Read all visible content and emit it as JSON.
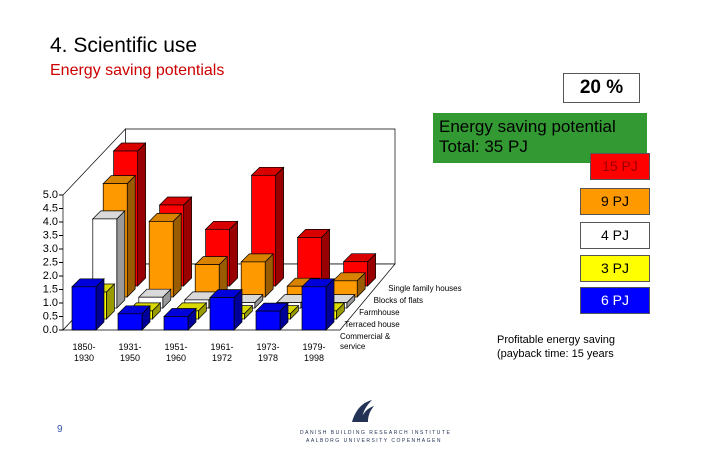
{
  "slide": {
    "title": "4. Scientific use",
    "subtitle": "Energy saving potentials",
    "percent": "20 %",
    "total": "Energy saving potential\nTotal: 35 PJ",
    "potentials": [
      "15 PJ",
      "9 PJ",
      "4 PJ",
      "3 PJ",
      "6 PJ"
    ],
    "note": "Profitable energy saving\n(payback time: 15 years",
    "page": "9",
    "institute": "DANISH BUILDING RESEARCH INSTITUTE",
    "university": "AALBORG UNIVERSITY COPENHAGEN"
  },
  "chart_data": {
    "type": "bar3d",
    "categories": [
      "1850-\n1930",
      "1931-\n1950",
      "1951-\n1960",
      "1961-\n1972",
      "1973-\n1978",
      "1979-\n1998"
    ],
    "series": [
      {
        "name": "Single family houses",
        "color": "#ff0000",
        "values": [
          5.0,
          3.0,
          2.1,
          4.1,
          1.8,
          0.9
        ]
      },
      {
        "name": "Blocks of flats",
        "color": "#ff9900",
        "values": [
          4.2,
          2.8,
          1.2,
          1.3,
          0.4,
          0.6
        ]
      },
      {
        "name": "Farmhouse",
        "color": "#ffffff",
        "values": [
          3.3,
          0.4,
          0.3,
          0.2,
          0.2,
          0.2
        ]
      },
      {
        "name": "Terraced house",
        "color": "#ffff00",
        "values": [
          1.0,
          0.3,
          0.3,
          0.2,
          0.2,
          0.3
        ]
      },
      {
        "name": "Commercial & service",
        "color": "#0000ff",
        "values": [
          1.6,
          0.6,
          0.5,
          1.2,
          0.7,
          1.6
        ]
      }
    ],
    "ylim": [
      0,
      5.0
    ],
    "yticks": [
      {
        "value": 0,
        "label": "0.0"
      },
      {
        "value": 0.5,
        "label": "0.5"
      },
      {
        "value": 1,
        "label": "1.0"
      },
      {
        "value": 1.5,
        "label": "1.5"
      },
      {
        "value": 2,
        "label": "2.0"
      },
      {
        "value": 2.5,
        "label": "2.5"
      },
      {
        "value": 3,
        "label": "3.0"
      },
      {
        "value": 3.5,
        "label": "3.5"
      },
      {
        "value": 4,
        "label": "4.0"
      },
      {
        "value": 4.5,
        "label": "4.5"
      },
      {
        "value": 5,
        "label": "5.0"
      }
    ]
  }
}
